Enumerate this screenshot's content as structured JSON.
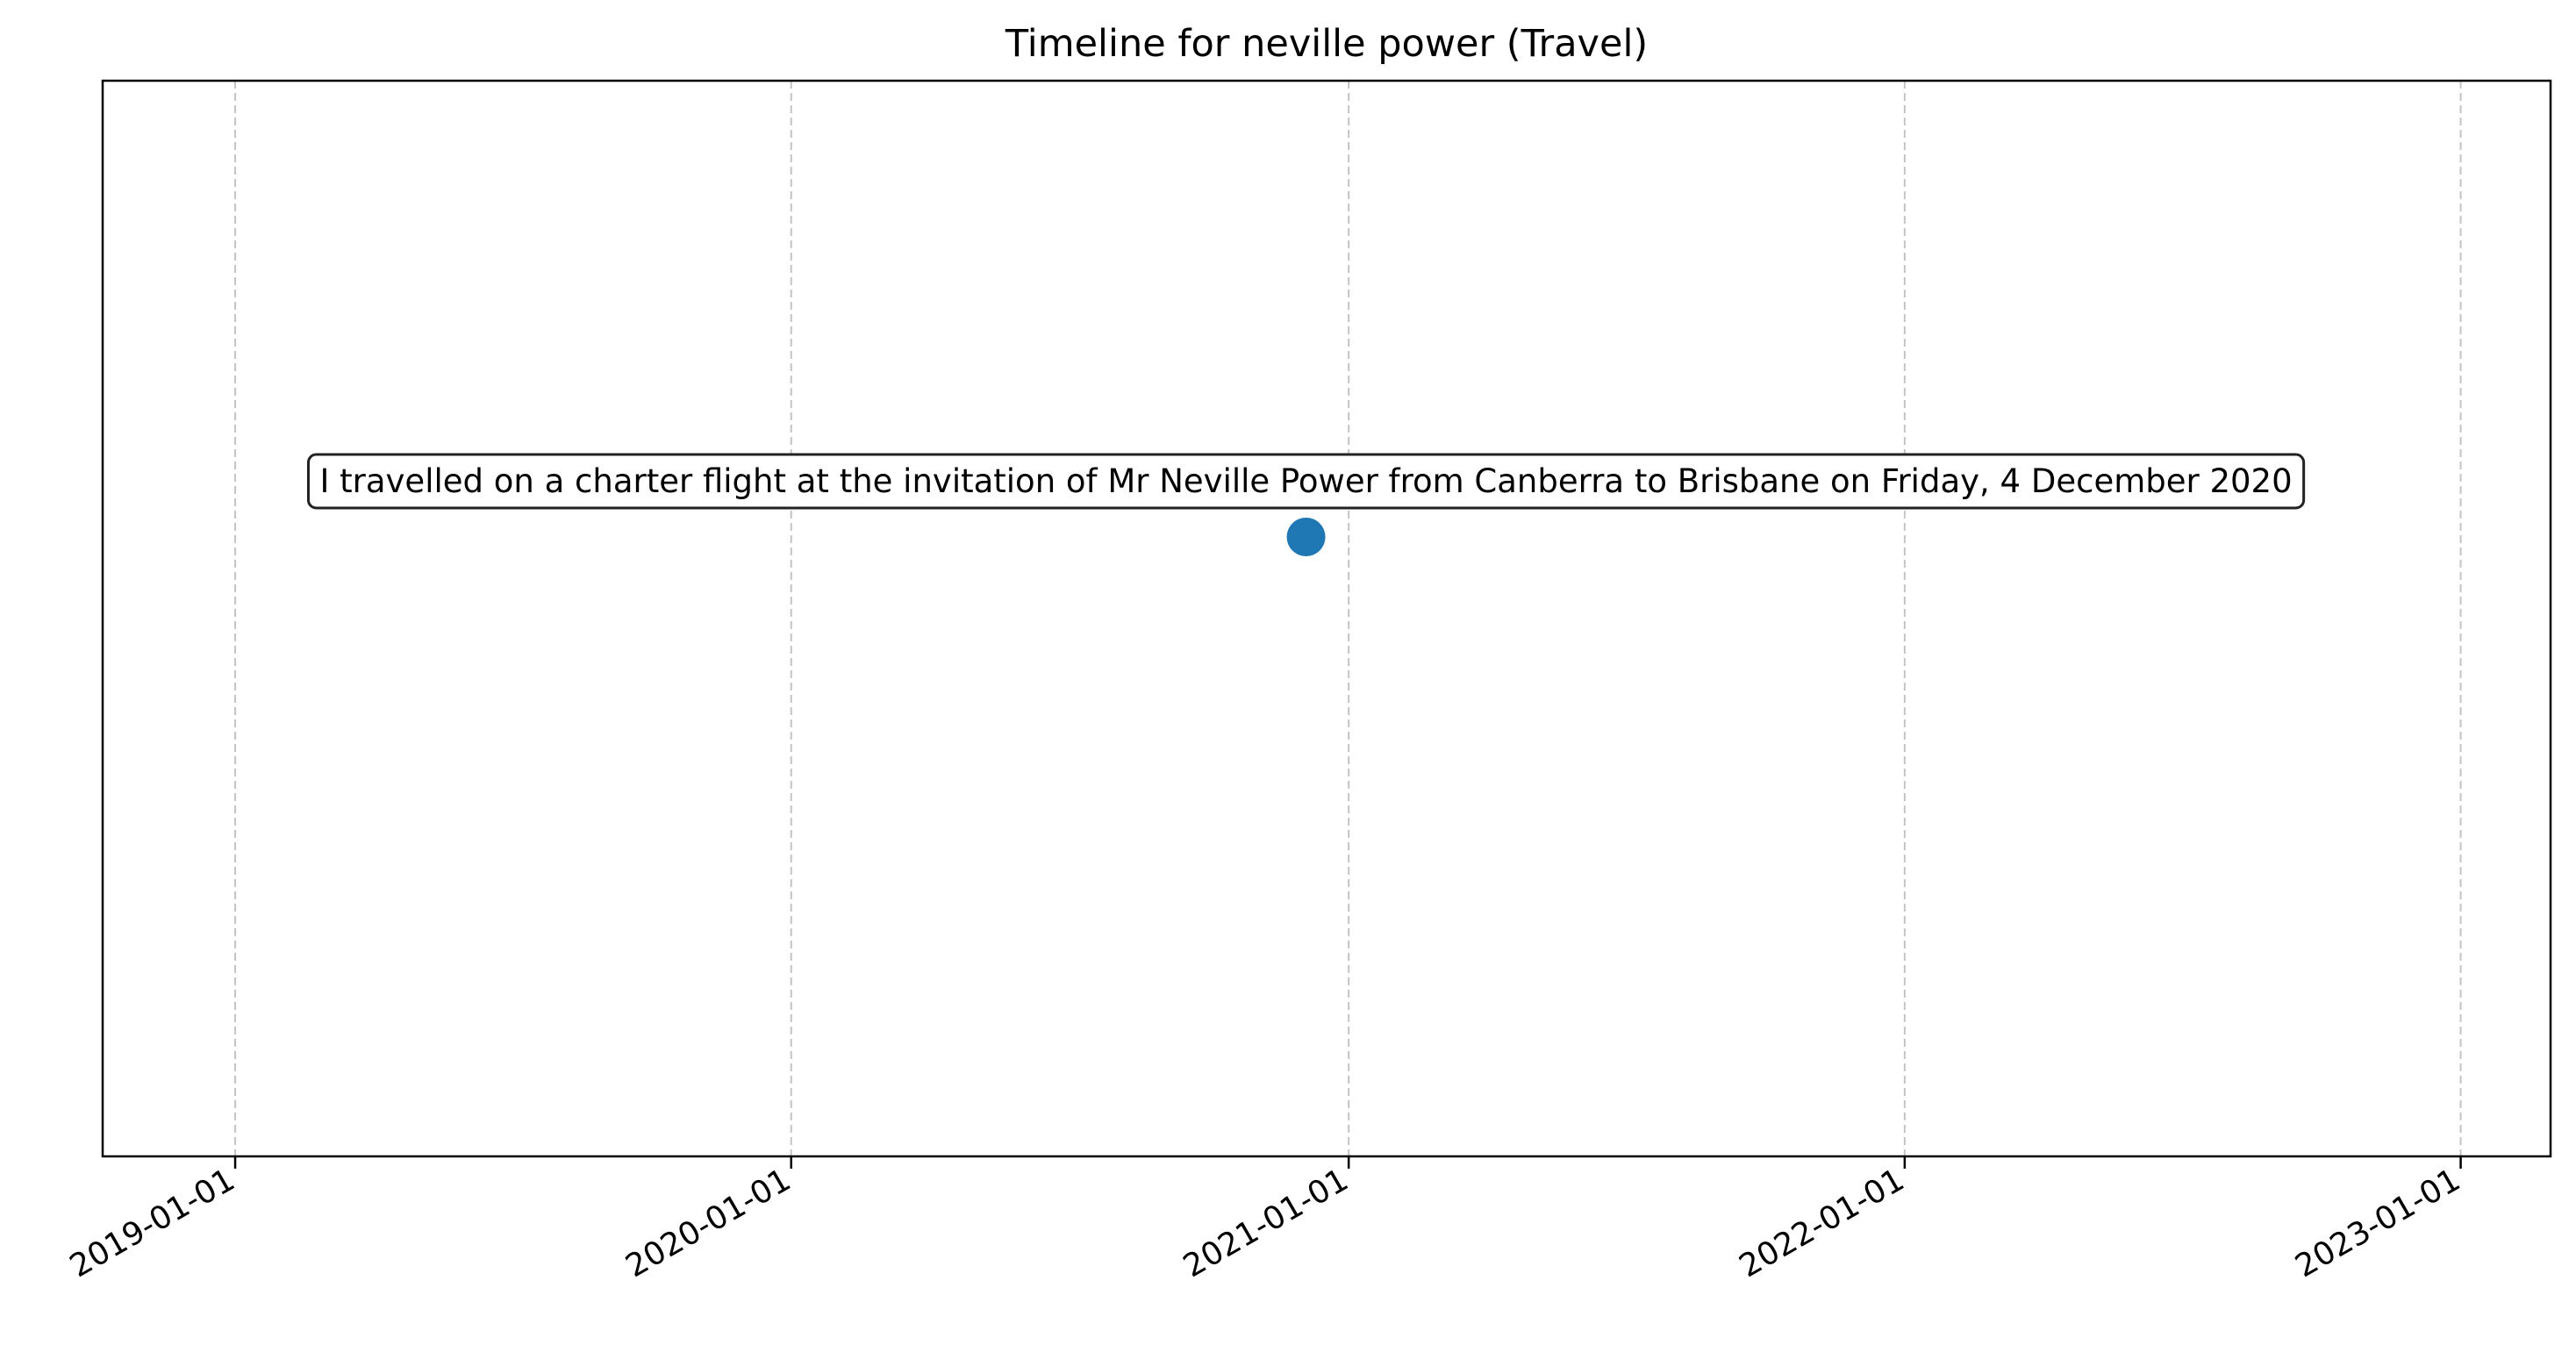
{
  "chart_data": {
    "type": "scatter",
    "title": "Timeline for neville power (Travel)",
    "xlabel": "",
    "ylabel": "",
    "x_axis": {
      "kind": "date",
      "range": [
        "2018-10-06",
        "2023-03-01"
      ],
      "ticks": [
        "2019-01-01",
        "2020-01-01",
        "2021-01-01",
        "2022-01-01",
        "2023-01-01"
      ]
    },
    "y_axis": {
      "visible": false,
      "range": [
        -1,
        1
      ]
    },
    "grid": {
      "x": true,
      "y": false,
      "style": "dashed"
    },
    "points": [
      {
        "x": "2020-12-04",
        "y": 0,
        "label": "I travelled on a charter flight at the invitation of Mr Neville Power from Canberra to Brisbane on Friday, 4 December 2020"
      }
    ],
    "colors": {
      "point": "#1f77b4",
      "grid": "#b0b0b0",
      "axes": "#000000"
    }
  }
}
